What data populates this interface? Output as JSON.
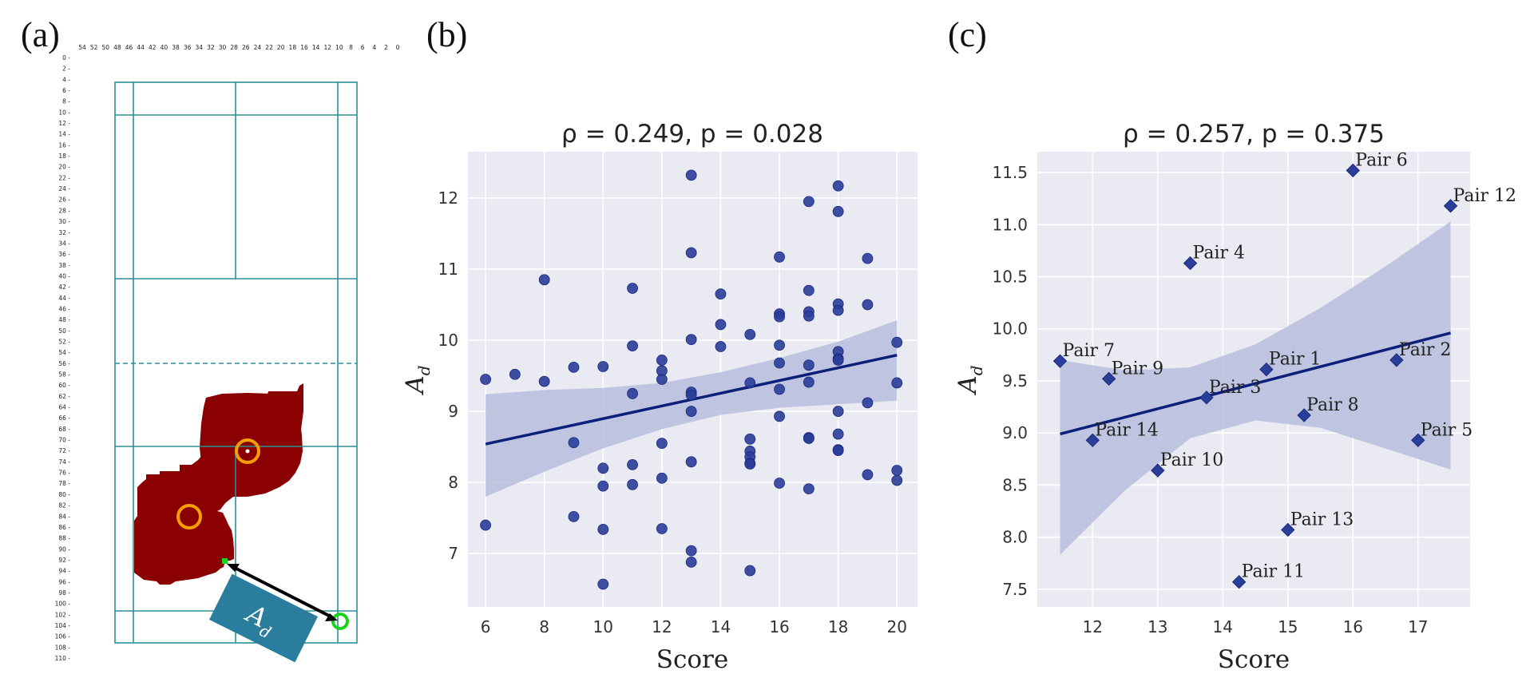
{
  "panel_labels": {
    "a": "(a)",
    "b": "(b)",
    "c": "(c)"
  },
  "court": {
    "ad_label_main": "A",
    "ad_label_sub": "d",
    "top_ticks": [
      "54",
      "52",
      "50",
      "48",
      "46",
      "44",
      "42",
      "40",
      "38",
      "36",
      "34",
      "32",
      "30",
      "28",
      "26",
      "24",
      "22",
      "20",
      "18",
      "16",
      "14",
      "12",
      "10",
      "8",
      "6",
      "4",
      "2",
      "0"
    ],
    "left_ticks": [
      "0",
      "2",
      "4",
      "6",
      "8",
      "10",
      "12",
      "14",
      "16",
      "18",
      "20",
      "22",
      "24",
      "26",
      "28",
      "30",
      "32",
      "34",
      "36",
      "38",
      "40",
      "42",
      "44",
      "46",
      "48",
      "50",
      "52",
      "54",
      "56",
      "58",
      "60",
      "62",
      "64",
      "66",
      "68",
      "70",
      "72",
      "74",
      "76",
      "78",
      "80",
      "82",
      "84",
      "86",
      "88",
      "90",
      "92",
      "94",
      "96",
      "98",
      "100",
      "102",
      "104",
      "106",
      "108",
      "110"
    ],
    "colors": {
      "lines": "#2a8f93",
      "blob": "#8b0000",
      "ring": "#f5a000",
      "green": "#19d419",
      "ad_box": "#2a7d9c"
    }
  },
  "chart_data": [
    {
      "type": "scatter",
      "id": "b",
      "title": "ρ = 0.249, p = 0.028",
      "xlabel": "Score",
      "ylabel_main": "A",
      "ylabel_sub": "d",
      "xlim": [
        5.4,
        20.7
      ],
      "ylim": [
        6.25,
        12.65
      ],
      "xticks": [
        "6",
        "8",
        "10",
        "12",
        "14",
        "16",
        "18",
        "20"
      ],
      "yticks": [
        "7",
        "8",
        "9",
        "10",
        "11",
        "12"
      ],
      "x": [
        6,
        6,
        7,
        8,
        8,
        9,
        9,
        9,
        10,
        10,
        10,
        10,
        10,
        11,
        11,
        11,
        11,
        11,
        12,
        12,
        12,
        12,
        12,
        12,
        13,
        13,
        13,
        13,
        13,
        13,
        13,
        13,
        13,
        14,
        14,
        14,
        15,
        15,
        15,
        15,
        15,
        15,
        15,
        15,
        16,
        16,
        16,
        16,
        16,
        16,
        16,
        16,
        17,
        17,
        17,
        17,
        17,
        17,
        17,
        17,
        17,
        17,
        18,
        18,
        18,
        18,
        18,
        18,
        18,
        18,
        18,
        18,
        18,
        19,
        19,
        19,
        19,
        20,
        20,
        20,
        20
      ],
      "y": [
        9.45,
        7.4,
        9.52,
        10.85,
        9.42,
        9.62,
        8.56,
        7.52,
        9.63,
        8.2,
        7.95,
        7.34,
        6.57,
        10.73,
        9.92,
        9.25,
        8.25,
        7.97,
        9.72,
        9.57,
        9.45,
        8.55,
        8.06,
        7.35,
        12.32,
        11.23,
        10.01,
        9.27,
        9.23,
        9.0,
        8.29,
        7.04,
        6.88,
        10.65,
        10.22,
        9.91,
        10.08,
        9.4,
        8.61,
        8.44,
        8.36,
        8.27,
        8.26,
        6.76,
        11.17,
        10.37,
        10.33,
        9.93,
        9.68,
        9.31,
        8.93,
        7.99,
        11.95,
        10.7,
        10.4,
        10.34,
        9.65,
        9.41,
        8.63,
        8.62,
        8.62,
        7.91,
        12.17,
        11.81,
        10.51,
        10.42,
        9.84,
        9.74,
        9.72,
        9.0,
        8.68,
        8.46,
        8.45,
        11.15,
        10.5,
        9.12,
        8.11,
        9.97,
        9.4,
        8.17,
        8.03
      ],
      "regression": {
        "x": [
          6,
          20
        ],
        "y": [
          8.54,
          9.79
        ]
      },
      "ci_band": {
        "x": [
          6,
          8,
          10,
          12,
          14,
          16,
          18,
          20
        ],
        "lower": [
          7.8,
          8.15,
          8.48,
          8.75,
          8.95,
          9.05,
          9.1,
          9.15
        ],
        "upper": [
          9.24,
          9.3,
          9.33,
          9.4,
          9.55,
          9.75,
          9.98,
          10.28
        ]
      },
      "colors": {
        "point": "#2a3d99",
        "line": "#0c1f7a",
        "band": "#b7bedd",
        "background": "#eaeaf2"
      }
    },
    {
      "type": "scatter",
      "id": "c",
      "title": "ρ = 0.257, p = 0.375",
      "xlabel": "Score",
      "ylabel_main": "A",
      "ylabel_sub": "d",
      "xlim": [
        11.15,
        17.8
      ],
      "ylim": [
        7.33,
        11.7
      ],
      "xticks": [
        "12",
        "13",
        "14",
        "15",
        "16",
        "17"
      ],
      "yticks": [
        "7.5",
        "8.0",
        "8.5",
        "9.0",
        "9.5",
        "10.0",
        "10.5",
        "11.0",
        "11.5"
      ],
      "points": [
        {
          "label": "Pair 1",
          "x": 14.67,
          "y": 9.61
        },
        {
          "label": "Pair 2",
          "x": 16.67,
          "y": 9.7
        },
        {
          "label": "Pair 3",
          "x": 13.75,
          "y": 9.34
        },
        {
          "label": "Pair 4",
          "x": 13.5,
          "y": 10.63
        },
        {
          "label": "Pair 5",
          "x": 17.0,
          "y": 8.93
        },
        {
          "label": "Pair 6",
          "x": 16.0,
          "y": 11.52
        },
        {
          "label": "Pair 7",
          "x": 11.5,
          "y": 9.69
        },
        {
          "label": "Pair 8",
          "x": 15.25,
          "y": 9.17
        },
        {
          "label": "Pair 9",
          "x": 12.25,
          "y": 9.52
        },
        {
          "label": "Pair 10",
          "x": 13.0,
          "y": 8.64
        },
        {
          "label": "Pair 11",
          "x": 14.25,
          "y": 7.57
        },
        {
          "label": "Pair 12",
          "x": 17.5,
          "y": 11.18
        },
        {
          "label": "Pair 13",
          "x": 15.0,
          "y": 8.07
        },
        {
          "label": "Pair 14",
          "x": 12.0,
          "y": 8.93
        }
      ],
      "regression": {
        "x": [
          11.5,
          17.5
        ],
        "y": [
          8.99,
          9.96
        ]
      },
      "ci_band": {
        "x": [
          11.5,
          12.5,
          13.5,
          14.5,
          15.5,
          16.5,
          17.5
        ],
        "lower": [
          7.83,
          8.45,
          8.95,
          9.12,
          9.05,
          8.85,
          8.65
        ],
        "upper": [
          9.7,
          9.6,
          9.63,
          9.85,
          10.2,
          10.6,
          11.03
        ]
      },
      "colors": {
        "point": "#2a3d99",
        "line": "#0c1f7a",
        "band": "#b7bedd",
        "background": "#eaeaf2"
      }
    }
  ]
}
